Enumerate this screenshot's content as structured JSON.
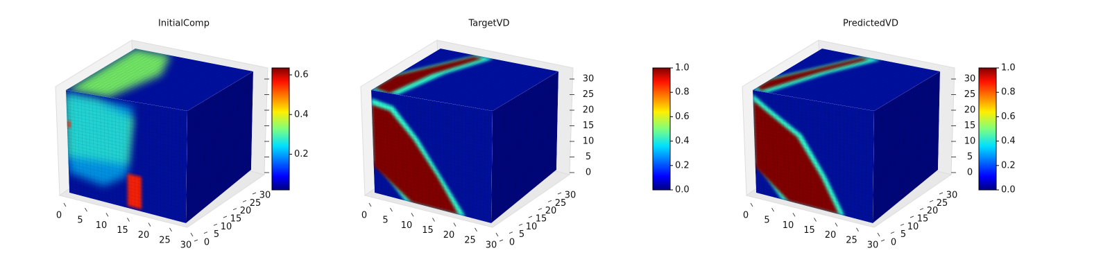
{
  "chart_data": [
    {
      "type": "voxel3d",
      "title": "InitialComp",
      "colormap": "jet",
      "xlim": [
        0,
        32
      ],
      "xticks": [
        0,
        5,
        10,
        15,
        20,
        25,
        30
      ],
      "ylim": [
        0,
        32
      ],
      "yticks": [
        0,
        5,
        10,
        15,
        20,
        25,
        30
      ],
      "zlim": [
        0,
        32
      ],
      "zticks": [
        0,
        5,
        10,
        15,
        20,
        25,
        30
      ],
      "ztick_labels": false,
      "colorbar": {
        "clim": [
          0.02,
          0.635
        ],
        "ticks": [
          0.2,
          0.4,
          0.6
        ]
      }
    },
    {
      "type": "voxel3d",
      "title": "TargetVD",
      "colormap": "jet",
      "xlim": [
        0,
        32
      ],
      "xticks": [
        0,
        5,
        10,
        15,
        20,
        25,
        30
      ],
      "ylim": [
        0,
        32
      ],
      "yticks": [
        0,
        5,
        10,
        15,
        20,
        25,
        30
      ],
      "zlim": [
        0,
        32
      ],
      "zticks": [
        0,
        5,
        10,
        15,
        20,
        25,
        30
      ],
      "ztick_labels": true,
      "colorbar": {
        "clim": [
          0,
          1
        ],
        "ticks": [
          {
            "value": 0,
            "label": "0.0"
          },
          0.2,
          0.4,
          0.6,
          0.8,
          {
            "value": 1,
            "label": "1.0"
          }
        ]
      }
    },
    {
      "type": "voxel3d",
      "title": "PredictedVD",
      "colormap": "jet",
      "xlim": [
        0,
        32
      ],
      "xticks": [
        0,
        5,
        10,
        15,
        20,
        25,
        30
      ],
      "ylim": [
        0,
        32
      ],
      "yticks": [
        0,
        5,
        10,
        15,
        20,
        25,
        30
      ],
      "zlim": [
        0,
        32
      ],
      "zticks": [
        0,
        5,
        10,
        15,
        20,
        25,
        30
      ],
      "ztick_labels": true,
      "colorbar": {
        "clim": [
          0,
          1
        ],
        "ticks": [
          {
            "value": 0,
            "label": "0.0"
          },
          0.2,
          0.4,
          0.6,
          0.8,
          {
            "value": 1,
            "label": "1.0"
          }
        ]
      }
    }
  ]
}
